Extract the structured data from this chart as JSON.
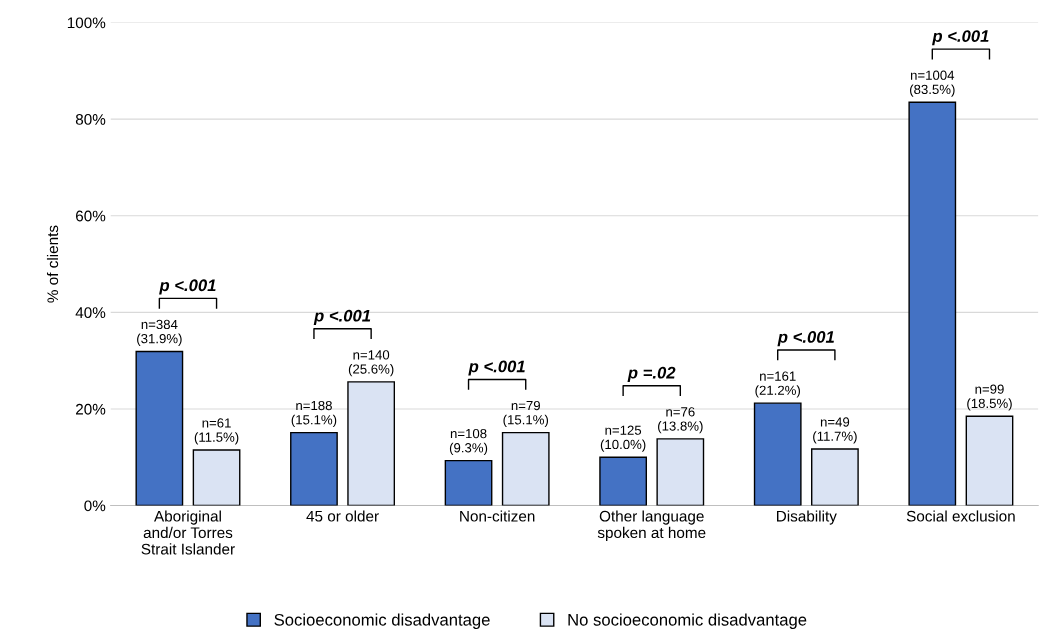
{
  "chart_data": {
    "type": "bar",
    "ylabel": "% of clients",
    "categories": [
      "Aboriginal\nand/or Torres\nStrait Islander",
      "45 or older",
      "Non-citizen",
      "Other language\nspoken at home",
      "Disability",
      "Social exclusion"
    ],
    "series": [
      {
        "name": "Socioeconomic disadvantage",
        "color": "#4472c4",
        "values": [
          31.9,
          15.1,
          9.3,
          10.0,
          21.2,
          83.5
        ],
        "value_labels": [
          "n=384\n(31.9%)",
          "n=188\n(15.1%)",
          "n=108\n(9.3%)",
          "n=125\n(10.0%)",
          "n=161\n(21.2%)",
          "n=1004\n(83.5%)"
        ]
      },
      {
        "name": "No socioeconomic disadvantage",
        "color": "#dae3f3",
        "values": [
          11.5,
          25.6,
          15.1,
          13.8,
          11.7,
          18.5
        ],
        "value_labels": [
          "n=61\n(11.5%)",
          "n=140\n(25.6%)",
          "n=79\n(15.1%)",
          "n=76\n(13.8%)",
          "n=49\n(11.7%)",
          "n=99\n(18.5%)"
        ]
      }
    ],
    "annotations": [
      "p <.001",
      "p <.001",
      "p <.001",
      "p =.02",
      "p <.001",
      "p <.001"
    ],
    "ylim": [
      0,
      100
    ],
    "yticks": [
      {
        "value": 0,
        "label": "0%"
      },
      {
        "value": 20,
        "label": "20%"
      },
      {
        "value": 40,
        "label": "40%"
      },
      {
        "value": 60,
        "label": "60%"
      },
      {
        "value": 80,
        "label": "80%"
      },
      {
        "value": 100,
        "label": "100%"
      }
    ],
    "grid": "y",
    "legend": "bottom"
  }
}
